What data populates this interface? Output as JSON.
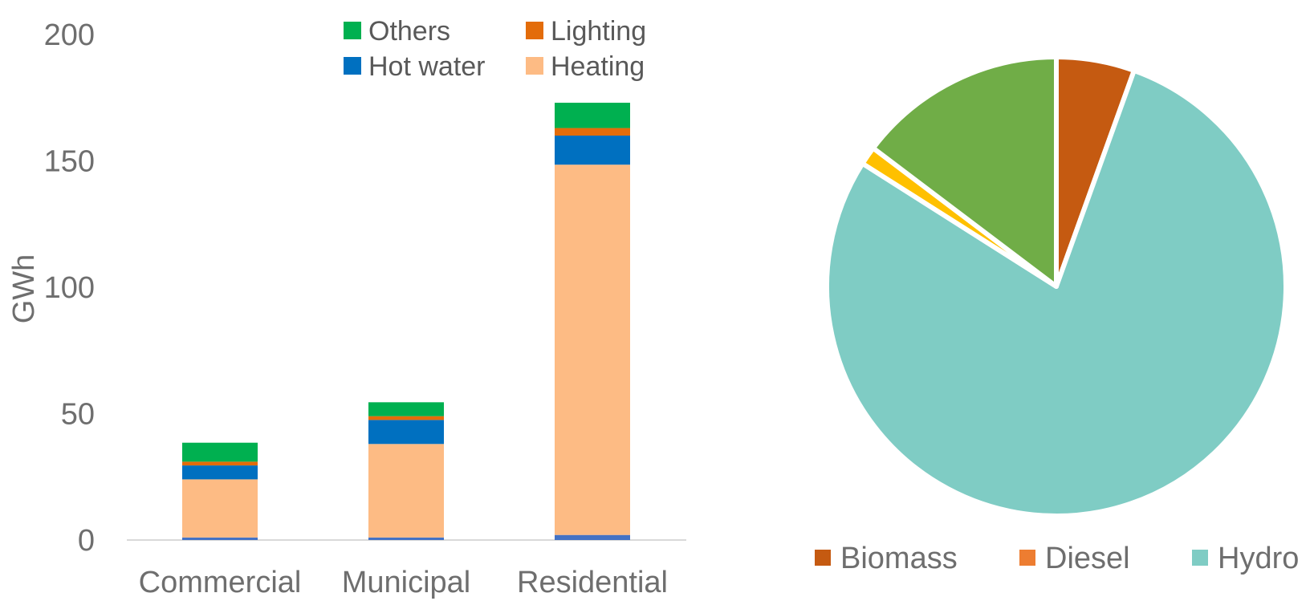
{
  "chart_data": [
    {
      "type": "bar",
      "stacked": true,
      "ylabel": "GWh",
      "xlabel": "",
      "ylim": [
        0,
        200
      ],
      "yticks": [
        0,
        50,
        100,
        150,
        200
      ],
      "categories": [
        "Commercial",
        "Municipal",
        "Residential"
      ],
      "series": [
        {
          "name": "",
          "color": "#4472c4",
          "values": [
            1,
            1,
            2
          ]
        },
        {
          "name": "Heating",
          "color": "#fdbb84",
          "values": [
            23,
            37,
            146.5
          ]
        },
        {
          "name": "Hot water",
          "color": "#0070c0",
          "values": [
            5.5,
            9.5,
            11.5
          ]
        },
        {
          "name": "Lighting",
          "color": "#e36c0a",
          "values": [
            1.5,
            1.5,
            3
          ]
        },
        {
          "name": "Others",
          "color": "#00b050",
          "values": [
            7.5,
            5.5,
            10
          ]
        }
      ],
      "legend": "top",
      "legend_order": [
        "Others",
        "Lighting",
        "Hot water",
        "Heating"
      ],
      "grid": false
    },
    {
      "type": "pie",
      "slices": [
        {
          "label": "Biomass",
          "value": 5.5,
          "color": "#c55a11",
          "in_legend": true
        },
        {
          "label": "Hydro",
          "value": 78.5,
          "color": "#7fccc4",
          "in_legend": true
        },
        {
          "label": "",
          "value": 1.3,
          "color": "#ffc000",
          "in_legend": false
        },
        {
          "label": "",
          "value": 14.7,
          "color": "#70ad47",
          "in_legend": false
        }
      ],
      "legend": "bottom",
      "legend_entries": [
        {
          "label": "Biomass",
          "color": "#c55a11"
        },
        {
          "label": "Diesel",
          "color": "#ed7d31"
        },
        {
          "label": "Hydro",
          "color": "#7fccc4"
        }
      ]
    }
  ]
}
